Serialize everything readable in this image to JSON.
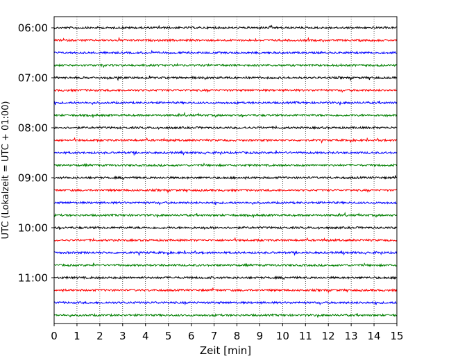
{
  "chart_data": {
    "type": "line",
    "title": "",
    "xlabel": "Zeit  [min]",
    "ylabel": "UTC (Lokalzeit = UTC + 01:00)",
    "xlim": [
      0,
      15
    ],
    "x_ticks": [
      0,
      1,
      2,
      3,
      4,
      5,
      6,
      7,
      8,
      9,
      10,
      11,
      12,
      13,
      14,
      15
    ],
    "y_ticks": [
      "06:00",
      "07:00",
      "08:00",
      "09:00",
      "10:00",
      "11:00"
    ],
    "grid": "vertical dotted",
    "trace_interval_min": 15,
    "trace_colors": [
      "#000000",
      "#ff0000",
      "#0000ff",
      "#008000"
    ],
    "traces": [
      {
        "start": "06:00",
        "color": "#000000"
      },
      {
        "start": "06:15",
        "color": "#ff0000"
      },
      {
        "start": "06:30",
        "color": "#0000ff"
      },
      {
        "start": "06:45",
        "color": "#008000"
      },
      {
        "start": "07:00",
        "color": "#000000"
      },
      {
        "start": "07:15",
        "color": "#ff0000"
      },
      {
        "start": "07:30",
        "color": "#0000ff"
      },
      {
        "start": "07:45",
        "color": "#008000"
      },
      {
        "start": "08:00",
        "color": "#000000"
      },
      {
        "start": "08:15",
        "color": "#ff0000"
      },
      {
        "start": "08:30",
        "color": "#0000ff"
      },
      {
        "start": "08:45",
        "color": "#008000"
      },
      {
        "start": "09:00",
        "color": "#000000"
      },
      {
        "start": "09:15",
        "color": "#ff0000"
      },
      {
        "start": "09:30",
        "color": "#0000ff"
      },
      {
        "start": "09:45",
        "color": "#008000"
      },
      {
        "start": "10:00",
        "color": "#000000"
      },
      {
        "start": "10:15",
        "color": "#ff0000"
      },
      {
        "start": "10:30",
        "color": "#0000ff"
      },
      {
        "start": "10:45",
        "color": "#008000"
      },
      {
        "start": "11:00",
        "color": "#000000"
      },
      {
        "start": "11:15",
        "color": "#ff0000"
      },
      {
        "start": "11:30",
        "color": "#0000ff"
      },
      {
        "start": "11:45",
        "color": "#008000"
      }
    ]
  }
}
